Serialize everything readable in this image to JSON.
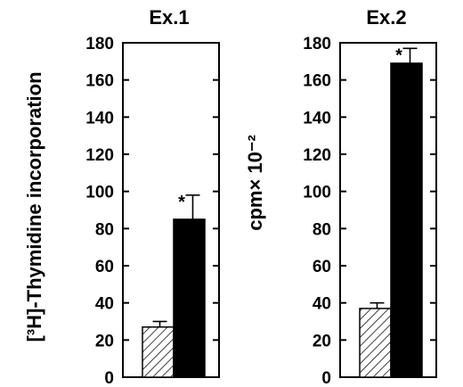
{
  "y_label_line1": "[³H]-Thymidine incorporation",
  "y_label_line2": "cpm× 10⁻²",
  "chart_data": [
    {
      "type": "bar",
      "title": "Ex.1",
      "categories": [
        "hatched",
        "solid"
      ],
      "values": [
        27,
        85
      ],
      "errors": [
        3,
        13
      ],
      "significance": [
        "",
        "*"
      ],
      "ylim": [
        0,
        180
      ],
      "yticks": [
        0,
        20,
        40,
        60,
        80,
        100,
        120,
        140,
        160,
        180
      ],
      "grid": false
    },
    {
      "type": "bar",
      "title": "Ex.2",
      "categories": [
        "hatched",
        "solid"
      ],
      "values": [
        37,
        169
      ],
      "errors": [
        3,
        8
      ],
      "significance": [
        "",
        "*"
      ],
      "ylim": [
        0,
        180
      ],
      "yticks": [
        0,
        20,
        40,
        60,
        80,
        100,
        120,
        140,
        160,
        180
      ],
      "grid": false
    }
  ]
}
